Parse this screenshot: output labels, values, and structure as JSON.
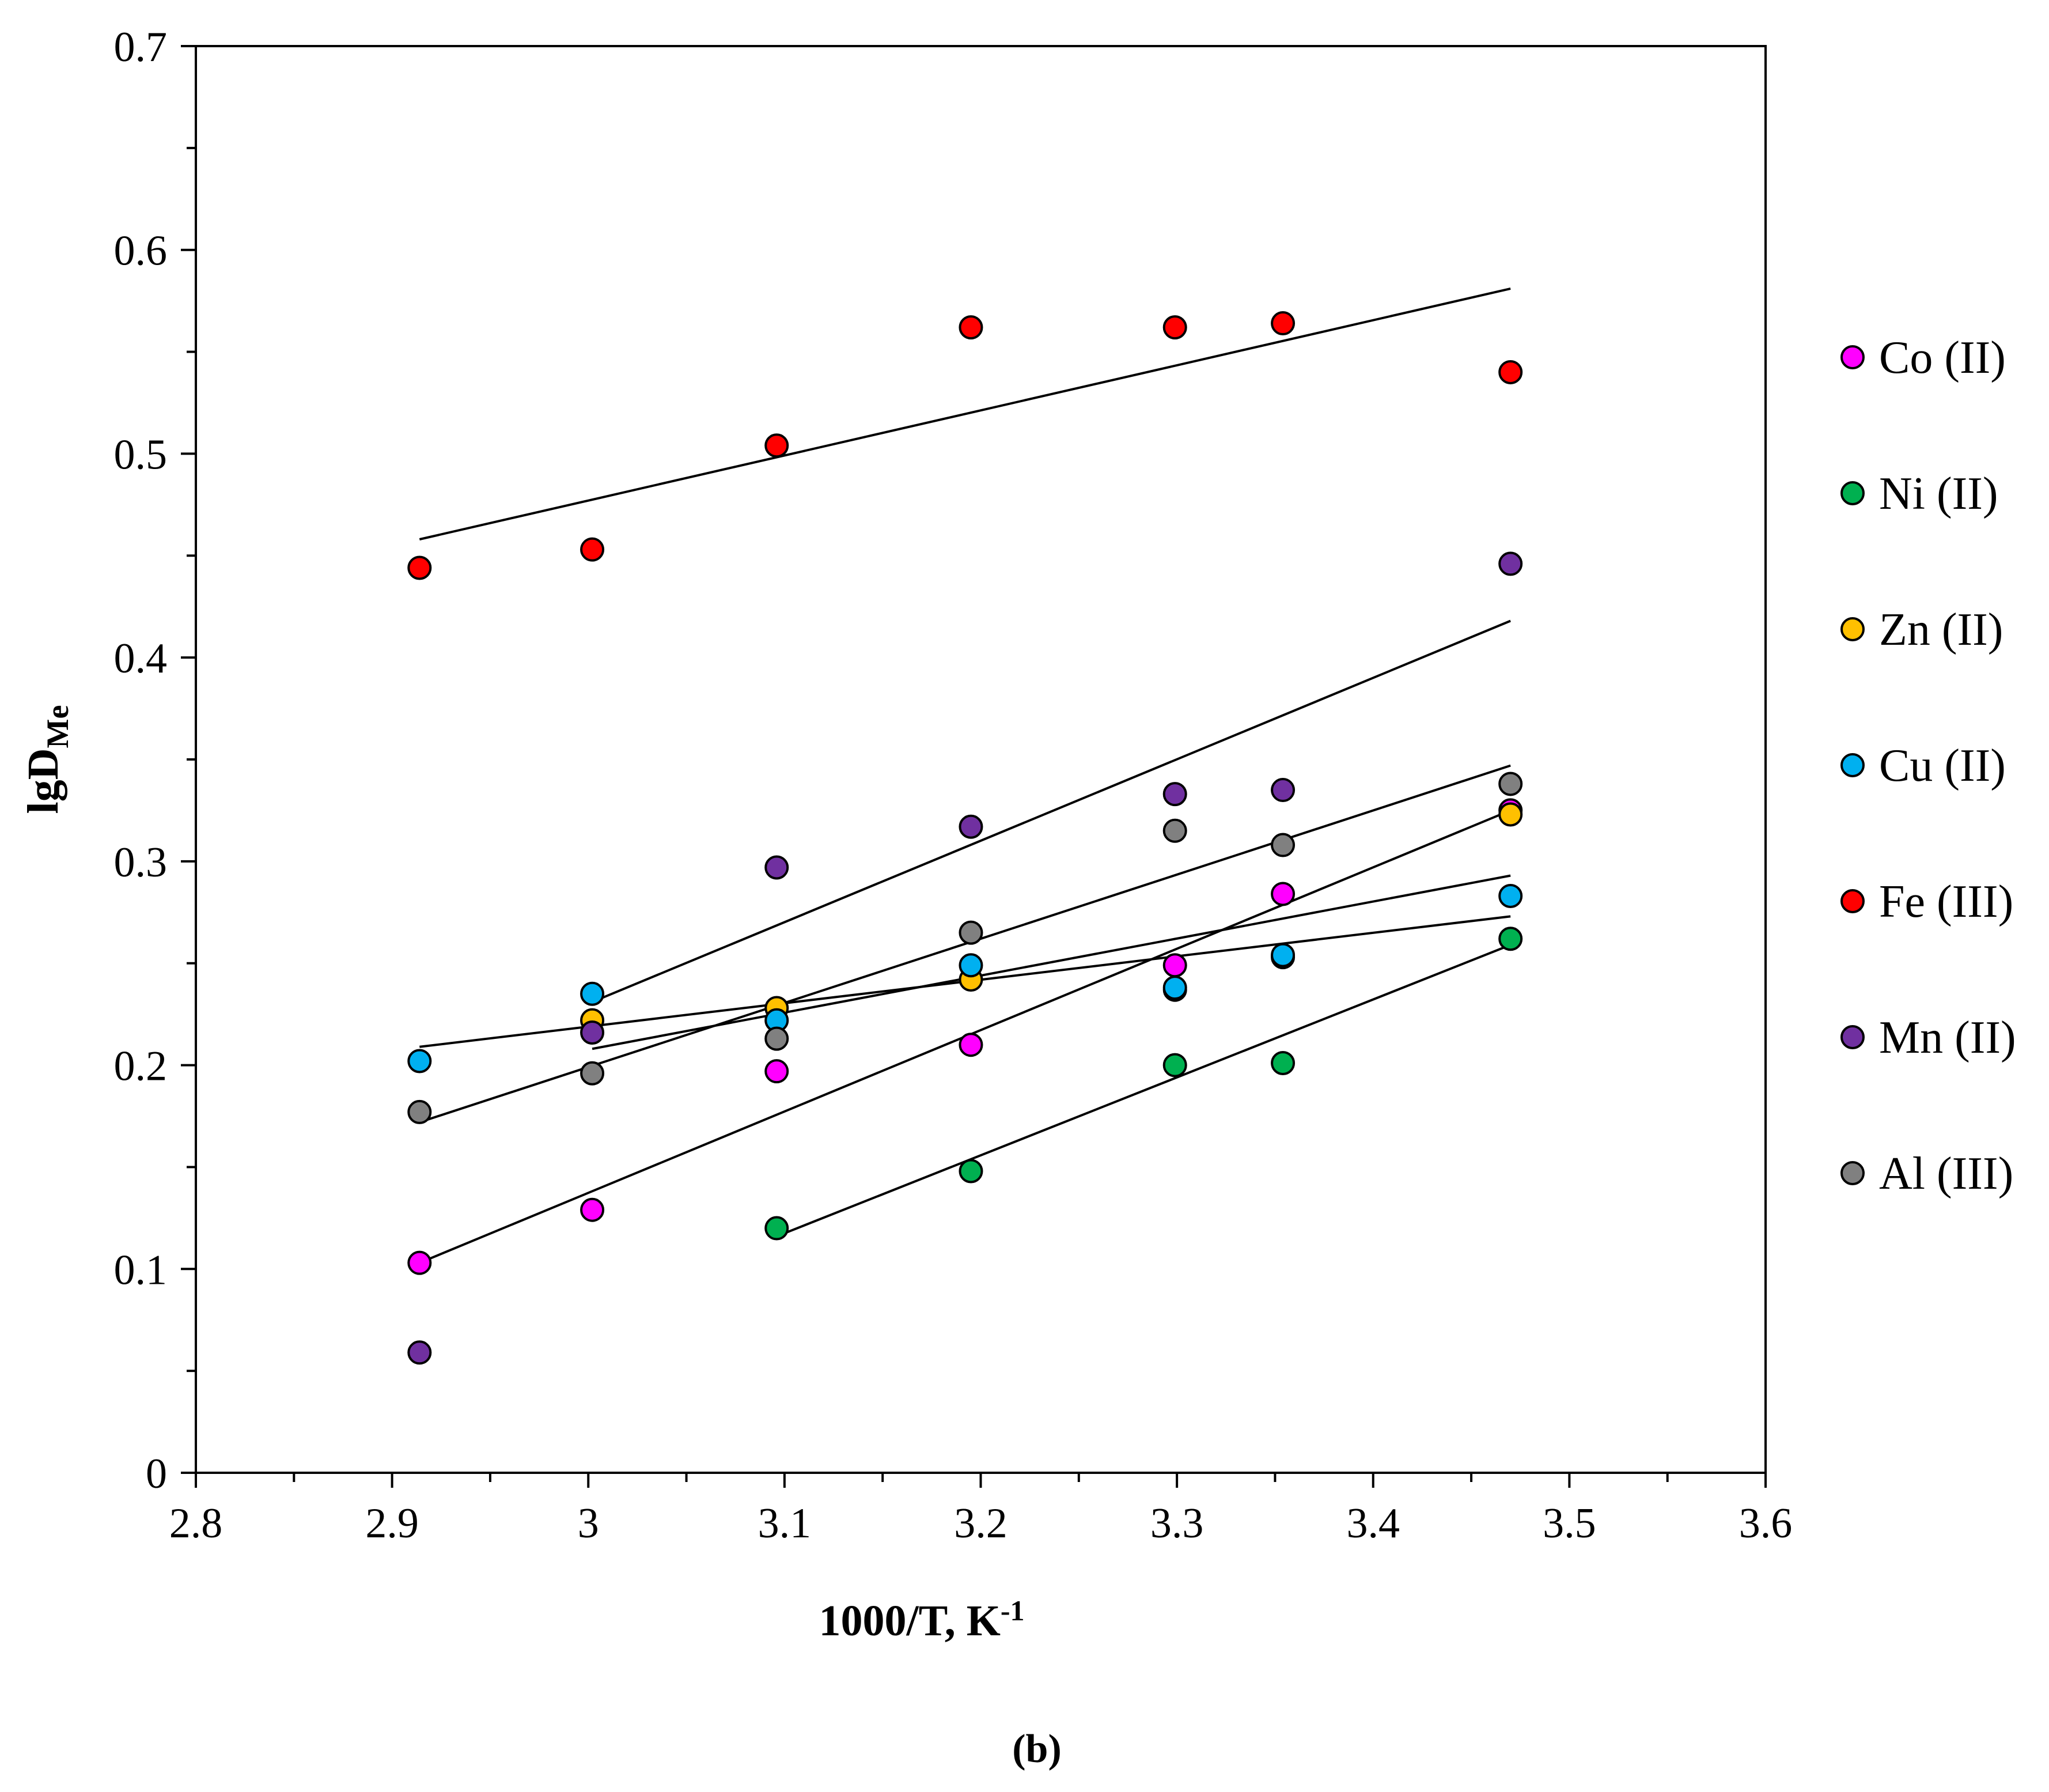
{
  "chart_data": {
    "type": "scatter",
    "caption": "(b)",
    "xlabel": {
      "main": "1000/T, K",
      "sup": "-1"
    },
    "ylabel": {
      "main": "lgD",
      "sub": "Me"
    },
    "xlim": [
      2.8,
      3.6
    ],
    "ylim": [
      0,
      0.7
    ],
    "x_ticks": [
      2.8,
      2.9,
      3.0,
      3.1,
      3.2,
      3.3,
      3.4,
      3.5,
      3.6
    ],
    "x_tick_labels": [
      "2.8",
      "2.9",
      "3",
      "3.1",
      "3.2",
      "3.3",
      "3.4",
      "3.5",
      "3.6"
    ],
    "y_ticks": [
      0,
      0.1,
      0.2,
      0.3,
      0.4,
      0.5,
      0.6,
      0.7
    ],
    "y_tick_labels": [
      "0",
      "0.1",
      "0.2",
      "0.3",
      "0.4",
      "0.5",
      "0.6",
      "0.7"
    ],
    "grid": false,
    "legend_position": "right",
    "series": [
      {
        "name": "Co (II)",
        "color": "#ff00ff",
        "x": [
          2.914,
          3.002,
          3.096,
          3.195,
          3.299,
          3.354,
          3.47
        ],
        "y": [
          0.103,
          0.129,
          0.197,
          0.21,
          0.249,
          0.284,
          0.325
        ],
        "fit": [
          [
            2.914,
            0.103
          ],
          [
            3.47,
            0.325
          ]
        ]
      },
      {
        "name": "Ni (II)",
        "color": "#00b050",
        "x": [
          3.096,
          3.195,
          3.299,
          3.354,
          3.47
        ],
        "y": [
          0.12,
          0.148,
          0.2,
          0.201,
          0.262
        ],
        "fit": [
          [
            3.096,
            0.116
          ],
          [
            3.47,
            0.259
          ]
        ]
      },
      {
        "name": "Zn (II)",
        "color": "#ffc000",
        "x": [
          3.002,
          3.096,
          3.195,
          3.299,
          3.354,
          3.47
        ],
        "y": [
          0.222,
          0.228,
          0.242,
          0.237,
          0.253,
          0.323
        ],
        "fit": [
          [
            3.002,
            0.208
          ],
          [
            3.47,
            0.293
          ]
        ]
      },
      {
        "name": "Cu (II)",
        "color": "#00b0f0",
        "x": [
          2.914,
          3.002,
          3.096,
          3.195,
          3.299,
          3.354,
          3.47
        ],
        "y": [
          0.202,
          0.235,
          0.222,
          0.249,
          0.238,
          0.254,
          0.283
        ],
        "fit": [
          [
            2.914,
            0.209
          ],
          [
            3.47,
            0.273
          ]
        ]
      },
      {
        "name": "Fe (III)",
        "color": "#ff0000",
        "x": [
          2.914,
          3.002,
          3.096,
          3.195,
          3.299,
          3.354,
          3.47
        ],
        "y": [
          0.444,
          0.453,
          0.504,
          0.562,
          0.562,
          0.564,
          0.54
        ],
        "fit": [
          [
            2.914,
            0.458
          ],
          [
            3.47,
            0.581
          ]
        ]
      },
      {
        "name": "Mn (II)",
        "color": "#7030a0",
        "x": [
          2.914,
          3.002,
          3.096,
          3.195,
          3.299,
          3.354,
          3.47
        ],
        "y": [
          0.059,
          0.216,
          0.297,
          0.317,
          0.333,
          0.335,
          0.446
        ],
        "fit": [
          [
            3.002,
            0.231
          ],
          [
            3.47,
            0.418
          ]
        ]
      },
      {
        "name": "Al (III)",
        "color": "#808080",
        "x": [
          2.914,
          3.002,
          3.096,
          3.195,
          3.299,
          3.354,
          3.47
        ],
        "y": [
          0.177,
          0.196,
          0.213,
          0.265,
          0.315,
          0.308,
          0.338
        ],
        "fit": [
          [
            2.914,
            0.172
          ],
          [
            3.47,
            0.347
          ]
        ]
      }
    ]
  }
}
